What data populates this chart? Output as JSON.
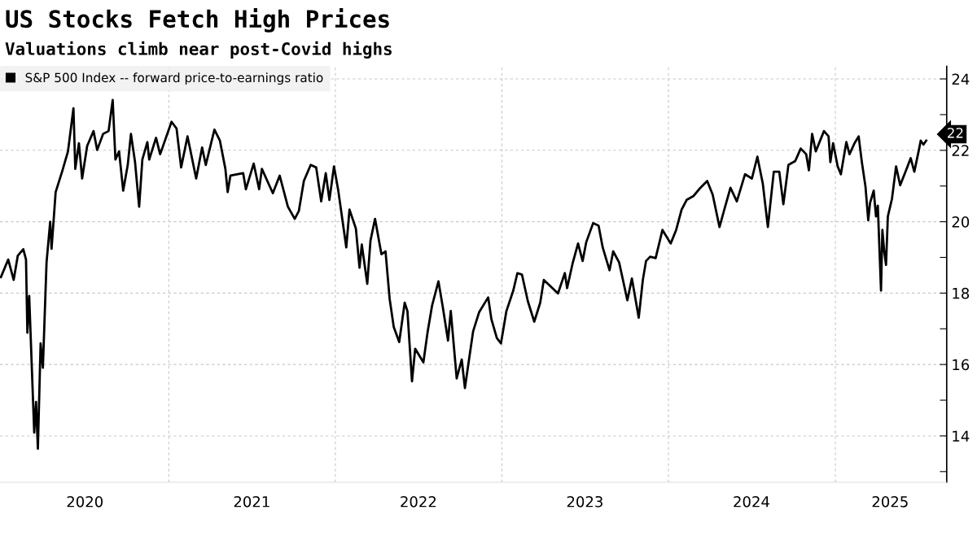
{
  "chart_data": {
    "type": "line",
    "title": "US Stocks Fetch High Prices",
    "subtitle": "Valuations climb near post-Covid highs",
    "legend": "top left",
    "grid": true,
    "xlim": [
      "2019-12-28",
      "2025-09-02"
    ],
    "xticks": [
      {
        "value": "2020-07-01",
        "label": "2020"
      },
      {
        "value": "2021-01-01",
        "label": null
      },
      {
        "value": "2021-07-02",
        "label": "2021"
      },
      {
        "value": "2022-01-01",
        "label": null
      },
      {
        "value": "2022-07-02",
        "label": "2022"
      },
      {
        "value": "2023-01-01",
        "label": null
      },
      {
        "value": "2023-07-02",
        "label": "2023"
      },
      {
        "value": "2024-01-01",
        "label": null
      },
      {
        "value": "2024-07-01",
        "label": "2024"
      },
      {
        "value": "2025-01-01",
        "label": null
      },
      {
        "value": "2025-05-01",
        "label": "2025"
      }
    ],
    "ylim": [
      12.7,
      24.35
    ],
    "yticks": [
      {
        "value": 13,
        "label": null
      },
      14,
      {
        "value": 15,
        "label": null
      },
      16,
      {
        "value": 17,
        "label": null
      },
      18,
      {
        "value": 19,
        "label": null
      },
      20,
      {
        "value": 21,
        "label": null
      },
      22,
      {
        "value": 23,
        "label": null
      },
      24
    ],
    "annotations": [
      {
        "text": "22",
        "x": "2025-07-19",
        "y": 22.27
      }
    ],
    "series": [
      {
        "name": "S&P 500 Index -- forward price-to-earnings ratio",
        "color": "#000000",
        "x": [
          "2019-12-30",
          "2020-01-15",
          "2020-01-27",
          "2020-02-05",
          "2020-02-17",
          "2020-02-23",
          "2020-02-26",
          "2020-03-01",
          "2020-03-07",
          "2020-03-12",
          "2020-03-16",
          "2020-03-20",
          "2020-03-26",
          "2020-03-31",
          "2020-04-08",
          "2020-04-16",
          "2020-04-19",
          "2020-04-28",
          "2020-05-13",
          "2020-05-25",
          "2020-06-06",
          "2020-06-10",
          "2020-06-18",
          "2020-06-25",
          "2020-07-06",
          "2020-07-20",
          "2020-07-28",
          "2020-08-10",
          "2020-08-22",
          "2020-08-31",
          "2020-09-06",
          "2020-09-14",
          "2020-09-23",
          "2020-10-03",
          "2020-10-10",
          "2020-10-19",
          "2020-10-28",
          "2020-11-04",
          "2020-11-15",
          "2020-11-19",
          "2020-12-04",
          "2020-12-13",
          "2021-01-07",
          "2021-01-18",
          "2021-01-28",
          "2021-02-11",
          "2021-03-02",
          "2021-03-15",
          "2021-03-23",
          "2021-04-11",
          "2021-04-23",
          "2021-05-05",
          "2021-05-10",
          "2021-05-16",
          "2021-06-13",
          "2021-06-19",
          "2021-07-06",
          "2021-07-18",
          "2021-07-24",
          "2021-08-17",
          "2021-09-01",
          "2021-09-19",
          "2021-10-04",
          "2021-10-13",
          "2021-10-24",
          "2021-11-08",
          "2021-11-20",
          "2021-12-01",
          "2021-12-11",
          "2021-12-19",
          "2021-12-29",
          "2022-01-07",
          "2022-01-25",
          "2022-02-01",
          "2022-02-15",
          "2022-02-23",
          "2022-02-28",
          "2022-03-12",
          "2022-03-19",
          "2022-03-29",
          "2022-04-12",
          "2022-04-21",
          "2022-04-30",
          "2022-05-09",
          "2022-05-21",
          "2022-06-02",
          "2022-06-08",
          "2022-06-18",
          "2022-06-25",
          "2022-07-13",
          "2022-07-22",
          "2022-08-01",
          "2022-08-15",
          "2022-08-24",
          "2022-09-05",
          "2022-09-11",
          "2022-09-24",
          "2022-10-05",
          "2022-10-12",
          "2022-10-21",
          "2022-10-30",
          "2022-11-12",
          "2022-12-02",
          "2022-12-09",
          "2022-12-21",
          "2022-12-30",
          "2023-01-11",
          "2023-01-26",
          "2023-02-04",
          "2023-02-14",
          "2023-02-27",
          "2023-03-13",
          "2023-03-26",
          "2023-04-03",
          "2023-05-04",
          "2023-05-19",
          "2023-05-24",
          "2023-06-05",
          "2023-06-17",
          "2023-06-27",
          "2023-07-05",
          "2023-07-20",
          "2023-08-01",
          "2023-08-10",
          "2023-08-25",
          "2023-09-02",
          "2023-09-15",
          "2023-10-03",
          "2023-10-13",
          "2023-10-28",
          "2023-11-06",
          "2023-11-13",
          "2023-11-22",
          "2023-12-04",
          "2023-12-19",
          "2024-01-06",
          "2024-01-18",
          "2024-01-30",
          "2024-02-10",
          "2024-02-25",
          "2024-03-11",
          "2024-03-26",
          "2024-04-07",
          "2024-04-22",
          "2024-05-01",
          "2024-05-16",
          "2024-05-30",
          "2024-06-17",
          "2024-07-02",
          "2024-07-14",
          "2024-07-26",
          "2024-08-06",
          "2024-08-19",
          "2024-08-31",
          "2024-09-09",
          "2024-09-20",
          "2024-10-05",
          "2024-10-17",
          "2024-10-29",
          "2024-11-04",
          "2024-11-11",
          "2024-11-19",
          "2024-12-07",
          "2024-12-17",
          "2024-12-21",
          "2024-12-27",
          "2025-01-06",
          "2025-01-13",
          "2025-01-25",
          "2025-02-01",
          "2025-02-12",
          "2025-02-21",
          "2025-02-28",
          "2025-03-08",
          "2025-03-14",
          "2025-03-18",
          "2025-03-26",
          "2025-03-31",
          "2025-04-04",
          "2025-04-11",
          "2025-04-14",
          "2025-04-18",
          "2025-04-22",
          "2025-04-26",
          "2025-05-05",
          "2025-05-14",
          "2025-05-23",
          "2025-06-06",
          "2025-06-15",
          "2025-06-23",
          "2025-07-03",
          "2025-07-07",
          "2025-07-13",
          "2025-07-19"
        ],
        "values": [
          18.45,
          18.94,
          18.37,
          19.05,
          19.23,
          18.94,
          16.89,
          17.92,
          15.83,
          14.09,
          14.95,
          13.64,
          16.59,
          15.91,
          18.86,
          20.0,
          19.24,
          20.83,
          21.44,
          21.97,
          23.18,
          21.48,
          22.2,
          21.21,
          22.12,
          22.54,
          22.01,
          22.46,
          22.54,
          23.41,
          21.74,
          21.97,
          20.87,
          21.59,
          22.46,
          21.67,
          20.42,
          21.74,
          22.23,
          21.74,
          22.35,
          21.89,
          22.8,
          22.61,
          21.52,
          22.39,
          21.21,
          22.08,
          21.59,
          22.58,
          22.27,
          21.48,
          20.83,
          21.29,
          21.36,
          20.91,
          21.63,
          20.91,
          21.48,
          20.8,
          21.29,
          20.42,
          20.08,
          20.3,
          21.14,
          21.59,
          21.52,
          20.57,
          21.36,
          20.61,
          21.55,
          20.91,
          19.28,
          20.34,
          19.81,
          18.71,
          19.36,
          18.26,
          19.47,
          20.08,
          19.09,
          19.17,
          17.84,
          17.05,
          16.63,
          17.73,
          17.5,
          15.53,
          16.44,
          16.06,
          16.89,
          17.65,
          18.33,
          17.65,
          16.67,
          17.5,
          15.61,
          16.14,
          15.34,
          16.14,
          16.93,
          17.46,
          17.88,
          17.27,
          16.74,
          16.59,
          17.5,
          18.07,
          18.56,
          18.52,
          17.77,
          17.2,
          17.73,
          18.37,
          17.99,
          18.56,
          18.14,
          18.83,
          19.39,
          18.9,
          19.43,
          19.96,
          19.89,
          19.28,
          18.64,
          19.17,
          18.86,
          17.8,
          18.41,
          17.31,
          18.37,
          18.9,
          19.02,
          18.98,
          19.77,
          19.39,
          19.77,
          20.34,
          20.61,
          20.72,
          20.95,
          21.14,
          20.76,
          19.85,
          20.27,
          20.95,
          20.57,
          21.33,
          21.21,
          21.82,
          21.06,
          19.85,
          21.4,
          21.4,
          20.49,
          21.59,
          21.7,
          22.05,
          21.89,
          21.44,
          22.46,
          21.97,
          22.54,
          22.39,
          21.67,
          22.2,
          21.55,
          21.33,
          22.23,
          21.89,
          22.2,
          22.39,
          21.67,
          20.98,
          20.04,
          20.53,
          20.87,
          20.15,
          20.45,
          18.07,
          19.77,
          19.17,
          18.79,
          20.15,
          20.64,
          21.55,
          21.02,
          21.48,
          21.78,
          21.4,
          22.01,
          22.27,
          22.16,
          22.27
        ]
      }
    ]
  }
}
